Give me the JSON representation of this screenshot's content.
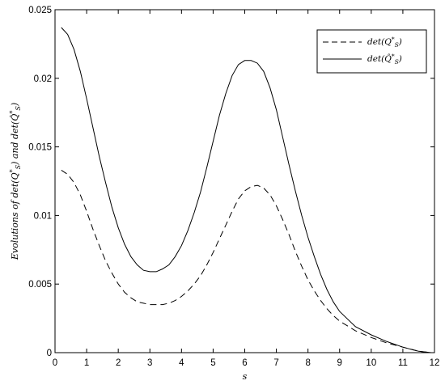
{
  "chart_data": {
    "type": "line",
    "title": "",
    "xlabel": "s",
    "ylabel": "Evolutions of det(Q*S) and det(Q̂*S)",
    "xlim": [
      0,
      12
    ],
    "ylim": [
      0,
      0.025
    ],
    "x_ticks": [
      0,
      1,
      2,
      3,
      4,
      5,
      6,
      7,
      8,
      9,
      10,
      11,
      12
    ],
    "y_ticks": [
      0,
      0.005,
      0.01,
      0.015,
      0.02,
      0.025
    ],
    "x_tick_labels": [
      "0",
      "1",
      "2",
      "3",
      "4",
      "5",
      "6",
      "7",
      "8",
      "9",
      "10",
      "11",
      "12"
    ],
    "y_tick_labels": [
      "0",
      "0.005",
      "0.01",
      "0.015",
      "0.02",
      "0.025"
    ],
    "grid": false,
    "legend_position": "top-right",
    "series": [
      {
        "name": "det(Q*S)",
        "style": "dashed",
        "color": "#000000",
        "x": [
          0.2,
          0.4,
          0.6,
          0.8,
          1.0,
          1.2,
          1.4,
          1.6,
          1.8,
          2.0,
          2.2,
          2.4,
          2.6,
          2.8,
          3.0,
          3.2,
          3.4,
          3.6,
          3.8,
          4.0,
          4.2,
          4.4,
          4.6,
          4.8,
          5.0,
          5.2,
          5.4,
          5.6,
          5.8,
          6.0,
          6.2,
          6.4,
          6.6,
          6.8,
          7.0,
          7.2,
          7.4,
          7.6,
          7.8,
          8.0,
          8.2,
          8.4,
          8.6,
          8.8,
          9.0,
          9.5,
          10.0,
          10.5,
          11.0,
          11.5,
          11.9
        ],
        "y": [
          0.0133,
          0.013,
          0.0124,
          0.0115,
          0.0103,
          0.009,
          0.0078,
          0.0067,
          0.0058,
          0.005,
          0.0044,
          0.004,
          0.0037,
          0.0036,
          0.0035,
          0.0035,
          0.0035,
          0.0036,
          0.0038,
          0.0041,
          0.0045,
          0.005,
          0.0056,
          0.0064,
          0.0073,
          0.0083,
          0.0093,
          0.0103,
          0.0112,
          0.0118,
          0.0121,
          0.0122,
          0.012,
          0.0115,
          0.0107,
          0.0097,
          0.0086,
          0.0074,
          0.0063,
          0.0053,
          0.0045,
          0.0038,
          0.0032,
          0.0027,
          0.0023,
          0.0016,
          0.0011,
          0.0007,
          0.0004,
          0.0001,
          0.0
        ]
      },
      {
        "name": "det(Q̂*S)",
        "style": "solid",
        "color": "#000000",
        "x": [
          0.2,
          0.4,
          0.6,
          0.8,
          1.0,
          1.2,
          1.4,
          1.6,
          1.8,
          2.0,
          2.2,
          2.4,
          2.6,
          2.8,
          3.0,
          3.2,
          3.4,
          3.6,
          3.8,
          4.0,
          4.2,
          4.4,
          4.6,
          4.8,
          5.0,
          5.2,
          5.4,
          5.6,
          5.8,
          6.0,
          6.2,
          6.4,
          6.6,
          6.8,
          7.0,
          7.2,
          7.4,
          7.6,
          7.8,
          8.0,
          8.2,
          8.4,
          8.6,
          8.8,
          9.0,
          9.5,
          10.0,
          10.5,
          11.0,
          11.5,
          11.9
        ],
        "y": [
          0.0237,
          0.0232,
          0.0221,
          0.0205,
          0.0185,
          0.0164,
          0.0143,
          0.0124,
          0.0106,
          0.0091,
          0.0079,
          0.007,
          0.0064,
          0.006,
          0.0059,
          0.0059,
          0.0061,
          0.0064,
          0.007,
          0.0078,
          0.0089,
          0.0102,
          0.0117,
          0.0135,
          0.0154,
          0.0173,
          0.0189,
          0.0202,
          0.021,
          0.0213,
          0.0213,
          0.0211,
          0.0205,
          0.0193,
          0.0177,
          0.0157,
          0.0137,
          0.0118,
          0.01,
          0.0084,
          0.007,
          0.0057,
          0.0046,
          0.0037,
          0.003,
          0.0019,
          0.0013,
          0.0008,
          0.0004,
          0.0001,
          0.0
        ]
      }
    ]
  }
}
